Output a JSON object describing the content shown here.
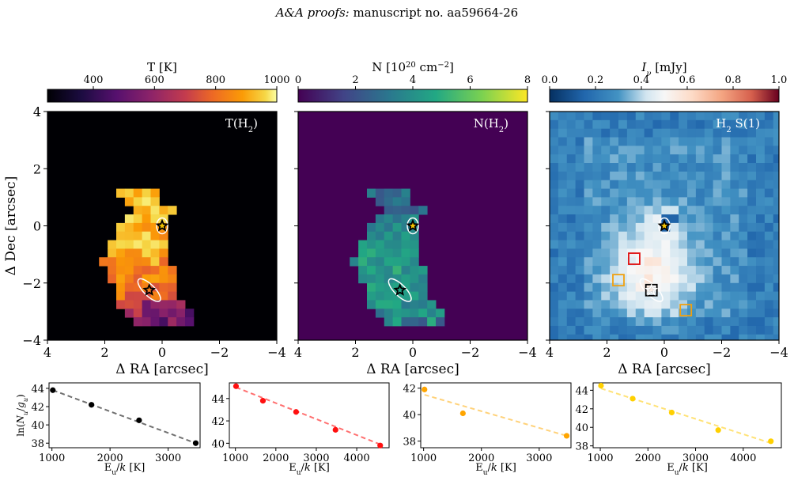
{
  "header": {
    "journal": "A&A proofs:",
    "manuscript": "manuscript no. aa59664-26"
  },
  "maps": [
    {
      "colorbar_title": "T [K]",
      "colorbar_ticks": [
        "400",
        "600",
        "800",
        "1000"
      ],
      "colorbar_range": [
        250,
        1000
      ],
      "colormap": "inferno",
      "panel_label": "T(H",
      "panel_sub": "2",
      "panel_suffix": ")",
      "background": "#000004"
    },
    {
      "colorbar_title": "N [10",
      "colorbar_title_sup": "20",
      "colorbar_title_rest": " cm",
      "colorbar_title_sup2": "−2",
      "colorbar_title_end": "]",
      "colorbar_ticks": [
        "0",
        "2",
        "4",
        "6",
        "8"
      ],
      "colorbar_range": [
        0,
        8
      ],
      "colormap": "viridis",
      "panel_label": "N(H",
      "panel_sub": "2",
      "panel_suffix": ")",
      "background": "#440154"
    },
    {
      "colorbar_title": "I",
      "colorbar_title_sub": "ν",
      "colorbar_title_rest": " [mJy]",
      "colorbar_ticks": [
        "0.0",
        "0.2",
        "0.4",
        "0.6",
        "0.8",
        "1.0"
      ],
      "colorbar_range": [
        0,
        1
      ],
      "colormap": "RdBu_r",
      "panel_label": "H",
      "panel_sub": "2",
      "panel_suffix": " S(1)",
      "background": "#0d4c8f"
    }
  ],
  "map_axes": {
    "ylabel": "Δ Dec [arcsec]",
    "xlabel": "Δ RA [arcsec]",
    "yticks": [
      "4",
      "2",
      "0",
      "−2",
      "−4"
    ],
    "xticks": [
      "4",
      "2",
      "0",
      "−2",
      "−4"
    ]
  },
  "markers": {
    "star_gold": {
      "ra": 0.0,
      "dec": 0.0,
      "color": "#f2c200"
    },
    "star_black": {
      "ra": 0.45,
      "dec": -2.25,
      "color": "#000000"
    },
    "boxes": [
      {
        "ra": 1.05,
        "dec": -1.15,
        "color": "#e01010"
      },
      {
        "ra": 1.6,
        "dec": -1.9,
        "color": "#f0a010"
      },
      {
        "ra": -0.75,
        "dec": -2.95,
        "color": "#f0a010"
      },
      {
        "ra": 0.45,
        "dec": -2.25,
        "color": "#000000"
      }
    ]
  },
  "chart_data": [
    {
      "type": "scatter",
      "title": "",
      "xlabel": "E_u/k [K]",
      "ylabel": "ln(N_u/g_u)",
      "color": "#000000",
      "fit_color": "#707070",
      "xticks": [
        "1000",
        "2000",
        "3000"
      ],
      "xlim": [
        950,
        3550
      ],
      "yticks": [
        "38",
        "40",
        "42",
        "44"
      ],
      "ylim": [
        37.5,
        44.6
      ],
      "points": [
        [
          1015,
          43.8
        ],
        [
          1680,
          42.2
        ],
        [
          2500,
          40.5
        ],
        [
          3475,
          38.0
        ]
      ],
      "fit": [
        [
          1015,
          43.8
        ],
        [
          3475,
          38.0
        ]
      ]
    },
    {
      "type": "scatter",
      "title": "",
      "xlabel": "E_u/k [K]",
      "ylabel": "",
      "color": "#ff1010",
      "fit_color": "#ff7070",
      "xticks": [
        "1000",
        "2000",
        "3000",
        "4000"
      ],
      "xlim": [
        850,
        4800
      ],
      "yticks": [
        "40",
        "42",
        "44"
      ],
      "ylim": [
        39.6,
        45.4
      ],
      "points": [
        [
          1015,
          45.1
        ],
        [
          1680,
          43.8
        ],
        [
          2500,
          42.8
        ],
        [
          3475,
          41.2
        ],
        [
          4580,
          39.8
        ]
      ],
      "fit": [
        [
          1015,
          45.0
        ],
        [
          4580,
          39.9
        ]
      ]
    },
    {
      "type": "scatter",
      "title": "",
      "xlabel": "E_u/k [K]",
      "ylabel": "",
      "color": "#ffa500",
      "fit_color": "#ffd27a",
      "xticks": [
        "1000",
        "2000",
        "3000"
      ],
      "xlim": [
        950,
        3550
      ],
      "yticks": [
        "38",
        "40",
        "42"
      ],
      "ylim": [
        37.5,
        42.4
      ],
      "points": [
        [
          1015,
          41.9
        ],
        [
          1680,
          40.1
        ],
        [
          3475,
          38.4
        ]
      ],
      "fit": [
        [
          1015,
          41.5
        ],
        [
          3475,
          38.4
        ]
      ]
    },
    {
      "type": "scatter",
      "title": "",
      "xlabel": "E_u/k [K]",
      "ylabel": "",
      "color": "#ffd000",
      "fit_color": "#ffe276",
      "xticks": [
        "1000",
        "2000",
        "3000",
        "4000"
      ],
      "xlim": [
        850,
        4800
      ],
      "yticks": [
        "38",
        "40",
        "42",
        "44"
      ],
      "ylim": [
        37.8,
        44.8
      ],
      "points": [
        [
          1015,
          44.5
        ],
        [
          1680,
          43.1
        ],
        [
          2500,
          41.6
        ],
        [
          3475,
          39.7
        ],
        [
          4580,
          38.5
        ]
      ],
      "fit": [
        [
          1015,
          44.2
        ],
        [
          4580,
          38.3
        ]
      ]
    }
  ]
}
